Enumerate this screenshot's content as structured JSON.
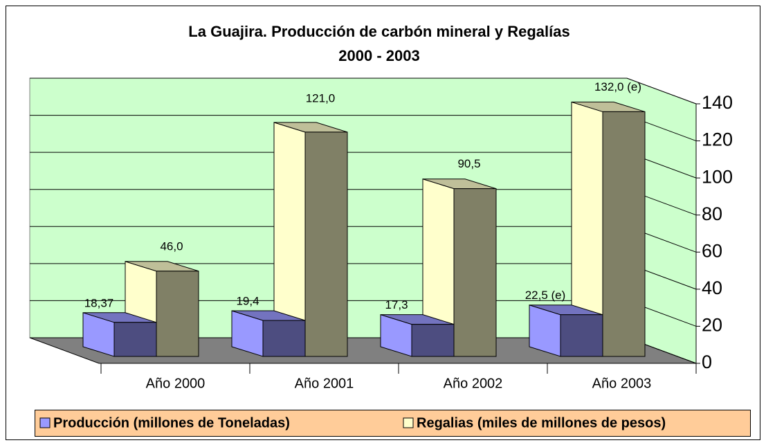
{
  "chart_data": {
    "type": "bar3d",
    "title": "La Guajira. Producción de carbón mineral y Regalías",
    "subtitle": "2000 - 2003",
    "categories": [
      "Año 2000",
      "Año 2001",
      "Año 2002",
      "Año 2003"
    ],
    "series": [
      {
        "name": "Producción (millones de Toneladas)",
        "color": "#9999ff",
        "values": [
          18.37,
          19.4,
          17.3,
          22.5
        ],
        "value_labels": [
          "18,37",
          "19,4",
          "17,3",
          "22,5 (e)"
        ]
      },
      {
        "name": "Regalias (miles de millones de pesos)",
        "color": "#ffffcc",
        "values": [
          46.0,
          121.0,
          90.5,
          132.0
        ],
        "value_labels": [
          "46,0",
          "121,0",
          "90,5",
          "132,0 (e)"
        ]
      }
    ],
    "ylim": [
      0,
      140
    ],
    "yticks": [
      0,
      20,
      40,
      60,
      80,
      100,
      120,
      140
    ],
    "grid": true,
    "legend": "bottom"
  }
}
